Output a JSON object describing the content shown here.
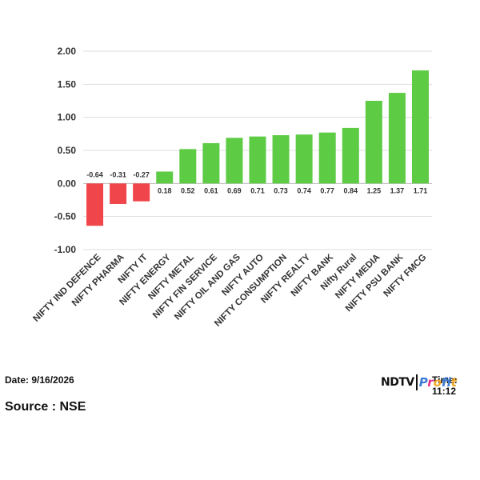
{
  "chart_data": {
    "type": "bar",
    "categories": [
      "NIFTY IND DEFENCE",
      "NIFTY PHARMA",
      "NIFTY IT",
      "NIFTY ENERGY",
      "NIFTY METAL",
      "NIFTY FIN SERVICE",
      "NIFTY OIL AND GAS",
      "NIFTY AUTO",
      "NIFTY CONSUMPTION",
      "NIFTY REALTY",
      "NIFTY BANK",
      "Nifty Rural",
      "NIFTY MEDIA",
      "NIFTY PSU BANK",
      "NIFTY FMCG"
    ],
    "values": [
      -0.64,
      -0.31,
      -0.27,
      0.18,
      0.52,
      0.61,
      0.69,
      0.71,
      0.73,
      0.74,
      0.77,
      0.84,
      1.25,
      1.37,
      1.71
    ],
    "data_labels": [
      "-0.64",
      "-0.31",
      "-0.27",
      "0.18",
      "0.52",
      "0.61",
      "0.69",
      "0.71",
      "0.73",
      "0.74",
      "0.77",
      "0.84",
      "1.25",
      "1.37",
      "1.71"
    ],
    "title": "",
    "xlabel": "",
    "ylabel": "",
    "ylim": [
      -1.0,
      2.0
    ],
    "yticks": [
      "2.00",
      "1.50",
      "1.00",
      "0.50",
      "0.00",
      "-0.50",
      "-1.00"
    ],
    "ytick_values": [
      2.0,
      1.5,
      1.0,
      0.5,
      0.0,
      -0.5,
      -1.0
    ],
    "grid": true,
    "colors": {
      "positive": "#5dcb44",
      "negative": "#f0454b",
      "grid": "#dddddd",
      "axis": "#bbbbbb"
    }
  },
  "footer": {
    "date": "Date: 9/16/2026",
    "source": "Source : NSE",
    "time": "Time: 11:12"
  },
  "logo": {
    "ndtv": "NDTV",
    "profit": "Profit",
    "ndtv_color": "#111111",
    "profit_colors": [
      "#3a7bd5",
      "#e0318a",
      "#f5a623"
    ]
  }
}
